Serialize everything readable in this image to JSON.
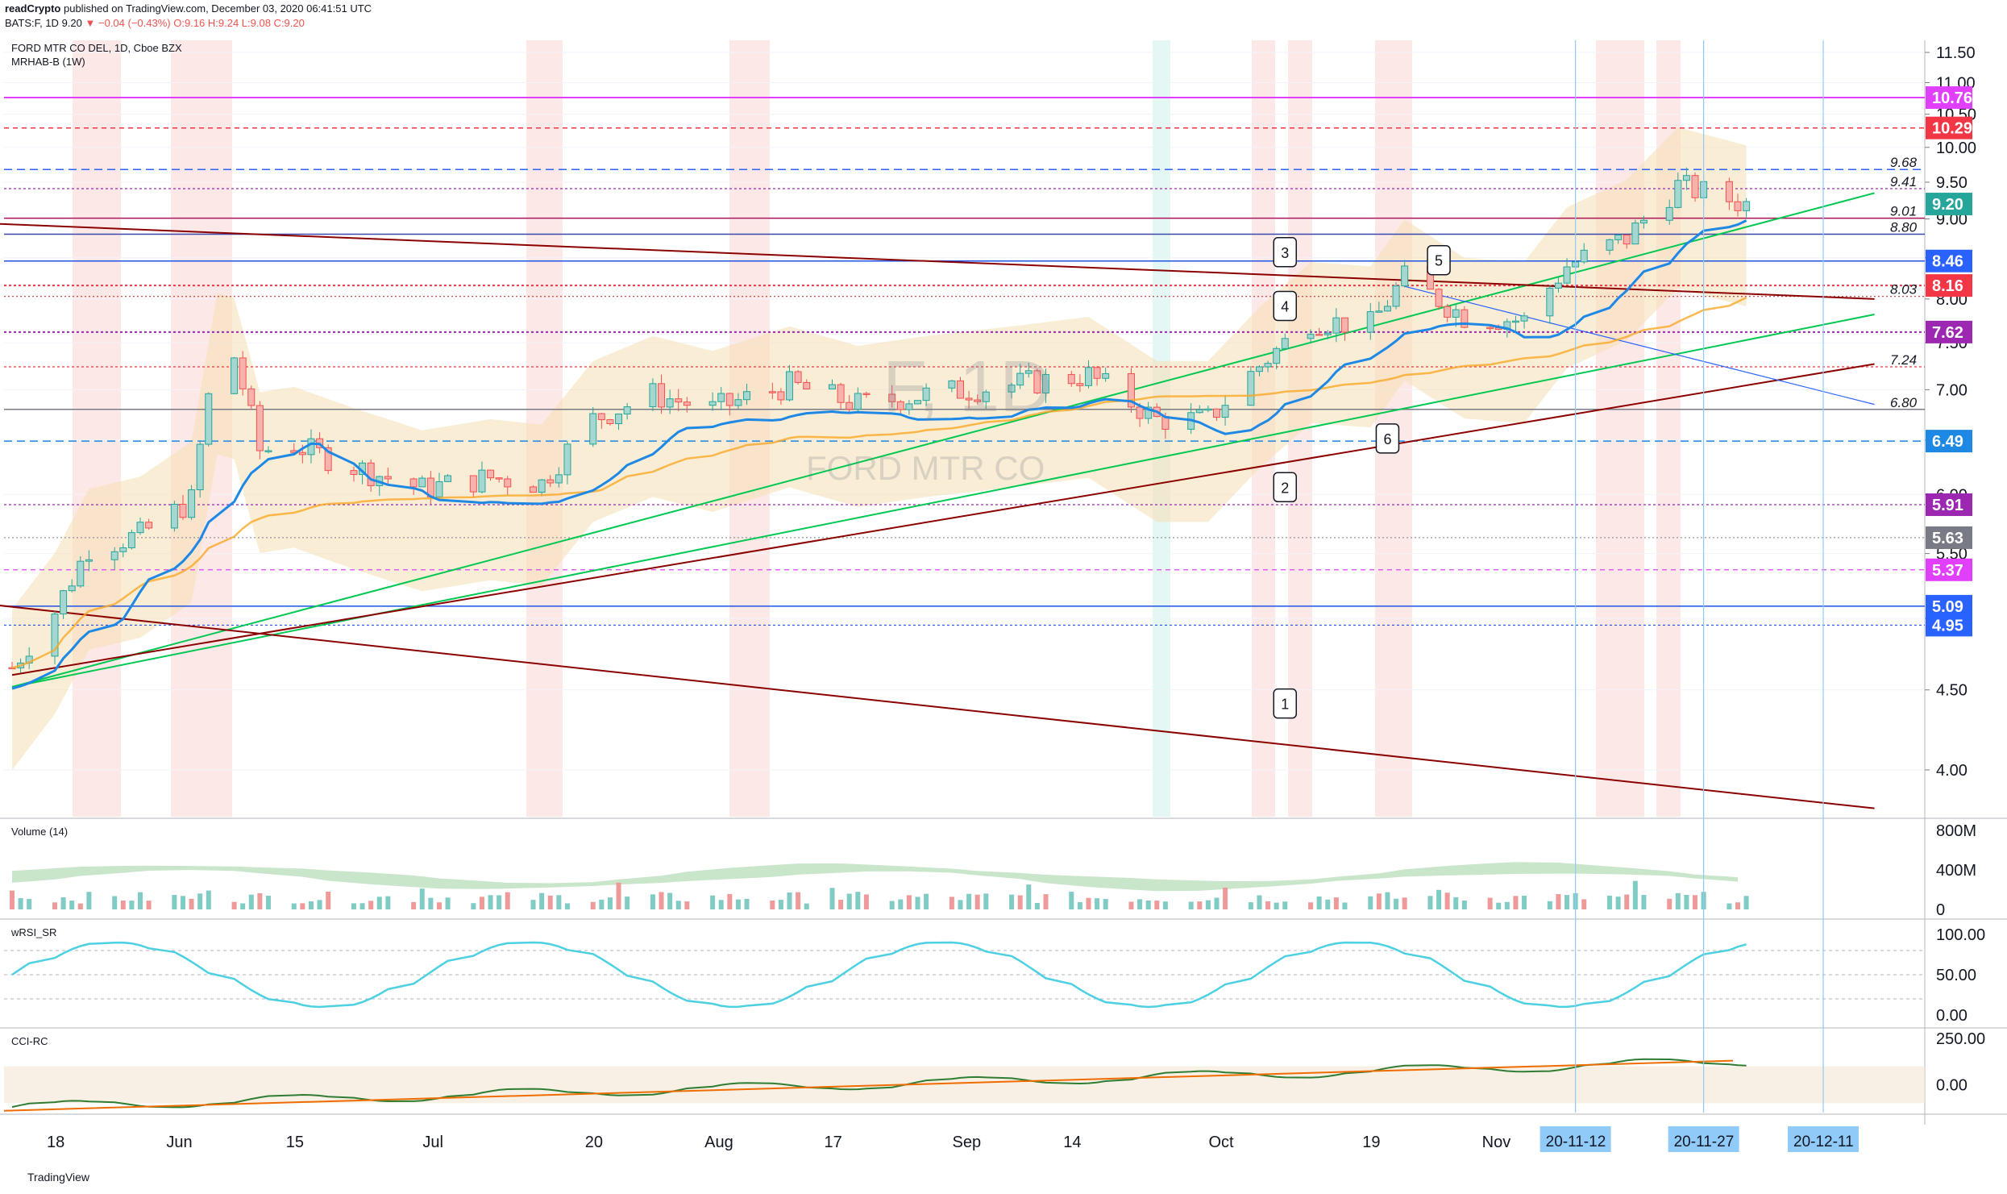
{
  "header": {
    "publisher": "readCrypto",
    "published_text": "published on TradingView.com, December 03, 2020 06:41:51 UTC",
    "symbol": "BATS:F, 1D",
    "last": "9.20",
    "change": "▼ −0.04 (−0.43%)",
    "ohlc": "O:9.16 H:9.24 L:9.08 C:9.20"
  },
  "legend": {
    "symbol_line": "FORD MTR CO DEL, 1D, Cboe BZX",
    "indicator": "MRHAB-B (1W)",
    "volume_label": "Volume (14)",
    "wrsi_label": "wRSI_SR",
    "cci_label": "CCI-RC"
  },
  "watermark": {
    "big": "F, 1D",
    "small": "FORD MTR CO"
  },
  "footer": {
    "brand": "TradingView"
  },
  "colors": {
    "up": "#26a69a",
    "down": "#ef5350",
    "grid": "#e0e3eb",
    "magenta": "#e040fb",
    "red_level": "#f23645",
    "blue_level": "#2962ff",
    "purple": "#9c27b0",
    "green_trend": "#4caf50",
    "dark_red_trend": "#8b0000",
    "heikin_fill": "#f5deb3",
    "accent_blue": "#1e88e5"
  },
  "chart_data": [
    {
      "type": "candlestick",
      "title": "FORD MTR CO DEL, 1D, Cboe BZX",
      "ylim": [
        3.6,
        11.65
      ],
      "y_scale": "log",
      "y_ticks": [
        "4.00",
        "4.50",
        "5.00",
        "5.50",
        "6.00",
        "6.50",
        "7.00",
        "7.50",
        "8.00",
        "8.50",
        "9.00",
        "9.50",
        "10.00",
        "10.50",
        "11.00",
        "11.50"
      ],
      "x_ticks": [
        "18",
        "Jun",
        "15",
        "Jul",
        "20",
        "Aug",
        "17",
        "Sep",
        "14",
        "Oct",
        "19",
        "Nov"
      ],
      "x_date_badges": [
        "20-11-12",
        "20-11-27",
        "20-12-11"
      ],
      "close_path": [
        {
          "d": "2020-05-13",
          "c": 4.65
        },
        {
          "d": "2020-05-18",
          "c": 5.05
        },
        {
          "d": "2020-05-22",
          "c": 5.55
        },
        {
          "d": "2020-05-28",
          "c": 5.65
        },
        {
          "d": "2020-06-03",
          "c": 5.95
        },
        {
          "d": "2020-06-06",
          "c": 7.4
        },
        {
          "d": "2020-06-08",
          "c": 7.35
        },
        {
          "d": "2020-06-11",
          "c": 6.4
        },
        {
          "d": "2020-06-15",
          "c": 6.45
        },
        {
          "d": "2020-06-22",
          "c": 6.25
        },
        {
          "d": "2020-06-30",
          "c": 6.05
        },
        {
          "d": "2020-07-08",
          "c": 6.15
        },
        {
          "d": "2020-07-14",
          "c": 6.1
        },
        {
          "d": "2020-07-20",
          "c": 6.7
        },
        {
          "d": "2020-07-27",
          "c": 6.95
        },
        {
          "d": "2020-08-03",
          "c": 6.8
        },
        {
          "d": "2020-08-12",
          "c": 7.05
        },
        {
          "d": "2020-08-20",
          "c": 6.85
        },
        {
          "d": "2020-08-28",
          "c": 6.95
        },
        {
          "d": "2020-09-07",
          "c": 7.05
        },
        {
          "d": "2020-09-16",
          "c": 7.15
        },
        {
          "d": "2020-09-24",
          "c": 6.7
        },
        {
          "d": "2020-09-30",
          "c": 6.7
        },
        {
          "d": "2020-10-06",
          "c": 7.25
        },
        {
          "d": "2020-10-12",
          "c": 7.75
        },
        {
          "d": "2020-10-19",
          "c": 7.7
        },
        {
          "d": "2020-10-23",
          "c": 8.25
        },
        {
          "d": "2020-10-30",
          "c": 7.8
        },
        {
          "d": "2020-11-06",
          "c": 7.75
        },
        {
          "d": "2020-11-11",
          "c": 8.4
        },
        {
          "d": "2020-11-18",
          "c": 8.75
        },
        {
          "d": "2020-11-24",
          "c": 9.45
        },
        {
          "d": "2020-12-02",
          "c": 9.2
        }
      ],
      "price_labels": [
        {
          "value": "10.76",
          "color": "#e040fb"
        },
        {
          "value": "10.29",
          "color": "#f23645"
        },
        {
          "value": "9.20",
          "color": "#26a69a"
        },
        {
          "value": "8.46",
          "color": "#2962ff"
        },
        {
          "value": "8.16",
          "color": "#f23645"
        },
        {
          "value": "7.62",
          "color": "#9c27b0"
        },
        {
          "value": "6.49",
          "color": "#1e88e5"
        },
        {
          "value": "5.91",
          "color": "#9c27b0"
        },
        {
          "value": "5.63",
          "color": "#787b86"
        },
        {
          "value": "5.37",
          "color": "#e040fb"
        },
        {
          "value": "5.09",
          "color": "#2962ff"
        },
        {
          "value": "4.95",
          "color": "#2962ff"
        }
      ],
      "annotations": [
        "9.68",
        "9.41",
        "9.01",
        "8.80",
        "8.03",
        "7.24",
        "6.80"
      ],
      "wave_labels": [
        "1",
        "2",
        "3",
        "4",
        "5",
        "6"
      ]
    },
    {
      "type": "bar",
      "title": "Volume (14)",
      "y_ticks": [
        "800M",
        "400M",
        "0"
      ],
      "ylim": [
        0,
        800
      ]
    },
    {
      "type": "line",
      "title": "wRSI_SR",
      "y_ticks": [
        "100.00",
        "50.00",
        "0.00"
      ],
      "ylim": [
        0,
        100
      ]
    },
    {
      "type": "line",
      "title": "CCI-RC",
      "y_ticks": [
        "250.00",
        "0.00"
      ]
    }
  ]
}
